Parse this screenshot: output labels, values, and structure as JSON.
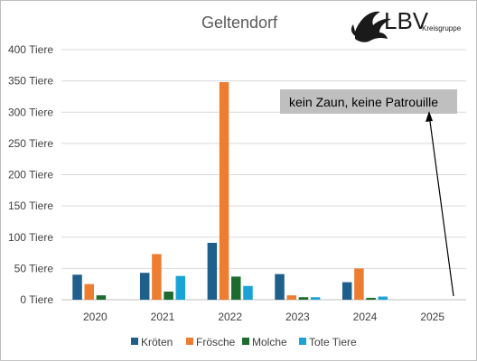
{
  "logo": {
    "text": "LBV",
    "subtext": "Kreisgruppe",
    "icon": "flying-bird-icon"
  },
  "chart_data": {
    "type": "bar",
    "title": "Geltendorf",
    "categories": [
      "2020",
      "2021",
      "2022",
      "2023",
      "2024",
      "2025"
    ],
    "series": [
      {
        "name": "Kröten",
        "color": "#1f5f8b",
        "values": [
          40,
          43,
          91,
          41,
          28,
          0
        ]
      },
      {
        "name": "Frösche",
        "color": "#ed7d31",
        "values": [
          25,
          73,
          348,
          7,
          50,
          0
        ]
      },
      {
        "name": "Molche",
        "color": "#1e6b2e",
        "values": [
          7,
          13,
          37,
          4,
          3,
          0
        ]
      },
      {
        "name": "Tote Tiere",
        "color": "#1aa3d4",
        "values": [
          0,
          38,
          22,
          4,
          5,
          0
        ]
      }
    ],
    "yticks": [
      "0 Tiere",
      "50 Tiere",
      "100 Tiere",
      "150 Tiere",
      "200 Tiere",
      "250 Tiere",
      "300 Tiere",
      "350 Tiere",
      "400 Tiere"
    ],
    "ylim": [
      0,
      400
    ],
    "grid": true,
    "legend_position": "bottom",
    "annotation": {
      "text": "kein Zaun, keine Patrouille",
      "points_to": "2025"
    }
  }
}
